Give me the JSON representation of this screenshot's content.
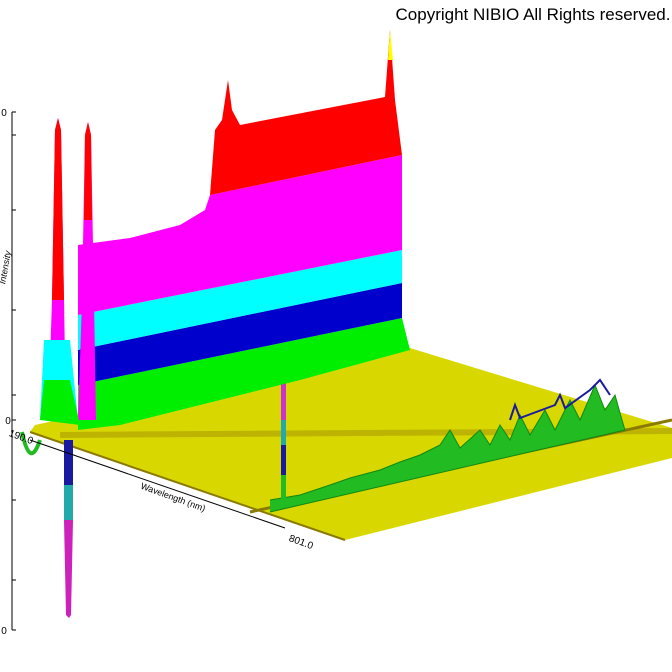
{
  "copyright": "Copyright NIBIO All Rights reserved.",
  "axes": {
    "y_label": "Intensity",
    "x_label": "Wavelength (nm)",
    "x_start": "190.0",
    "x_end": "801.0",
    "y_ticks": [
      "0",
      "0",
      "0"
    ]
  }
}
